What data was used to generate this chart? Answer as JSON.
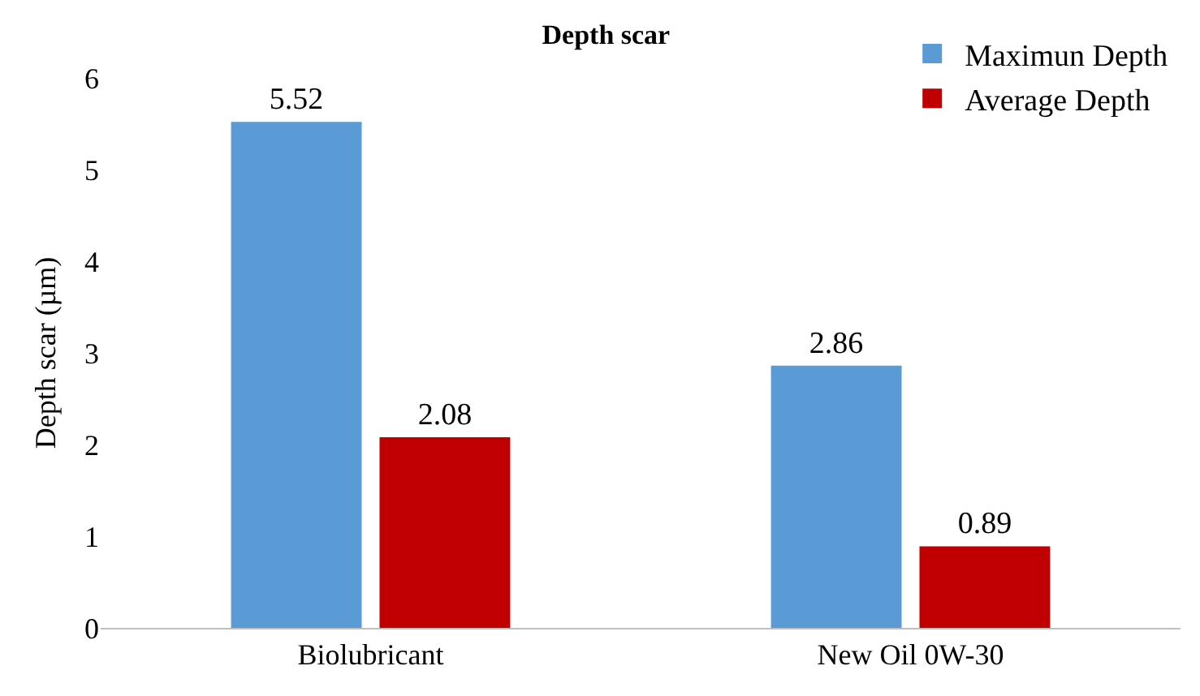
{
  "chart_data": {
    "type": "bar",
    "title": "Depth scar",
    "ylabel": "Depth scar (µm)",
    "categories": [
      "Biolubricant",
      "New Oil 0W-30"
    ],
    "series": [
      {
        "name": "Maximun Depth",
        "color": "#5b9bd5",
        "values": [
          5.52,
          2.86
        ]
      },
      {
        "name": "Average Depth",
        "color": "#c00000",
        "values": [
          2.08,
          0.89
        ]
      }
    ],
    "ylim": [
      0,
      6
    ],
    "yticks": [
      0,
      1,
      2,
      3,
      4,
      5,
      6
    ],
    "grid": false,
    "legend": "top right",
    "data_labels": true
  }
}
